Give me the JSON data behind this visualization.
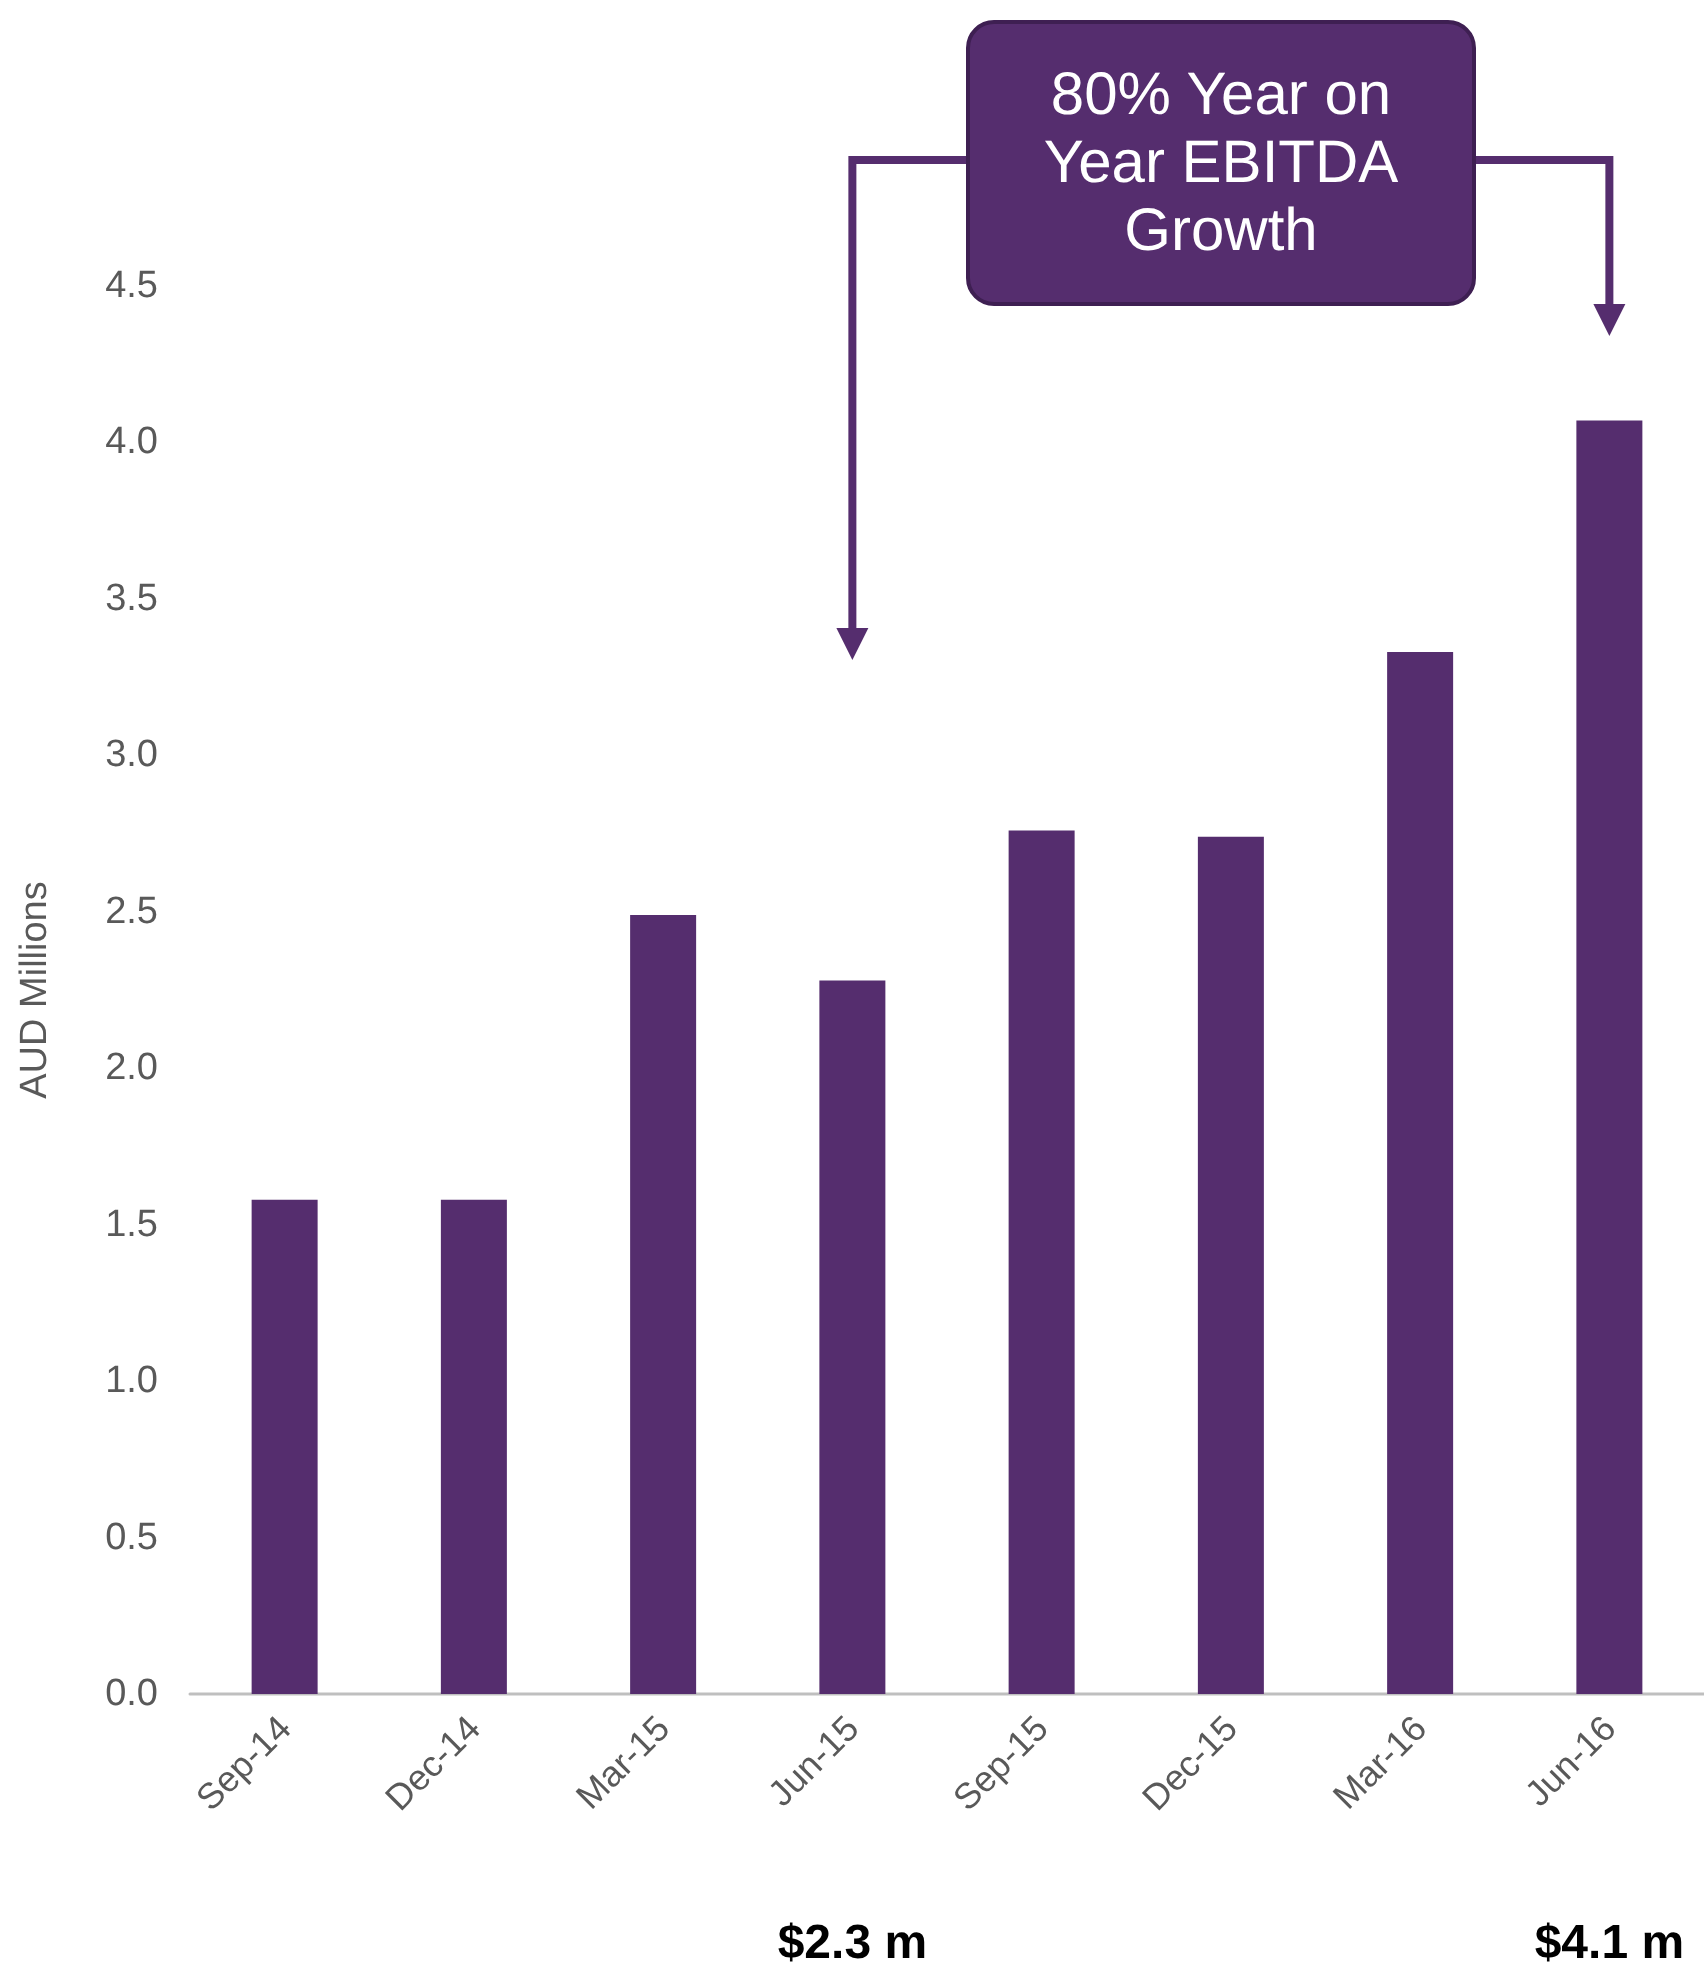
{
  "chart_data": {
    "type": "bar",
    "ylabel": "AUD Millions",
    "categories": [
      "Sep-14",
      "Dec-14",
      "Mar-15",
      "Jun-15",
      "Sep-15",
      "Dec-15",
      "Mar-16",
      "Jun-16"
    ],
    "values": [
      1.58,
      1.58,
      2.49,
      2.28,
      2.76,
      2.74,
      3.33,
      4.07
    ],
    "color": "#552d6e",
    "ylim": [
      0,
      4.5
    ],
    "yticks": [
      {
        "value": 0,
        "label": "0.0"
      },
      {
        "value": 0.5,
        "label": "0.5"
      },
      {
        "value": 1,
        "label": "1.0"
      },
      {
        "value": 1.5,
        "label": "1.5"
      },
      {
        "value": 2,
        "label": "2.0"
      },
      {
        "value": 2.5,
        "label": "2.5"
      },
      {
        "value": 3,
        "label": "3.0"
      },
      {
        "value": 3.5,
        "label": "3.5"
      },
      {
        "value": 4,
        "label": "4.0"
      },
      {
        "value": 4.5,
        "label": "4.5"
      }
    ],
    "grid": false,
    "annotations": [
      "80% Year on Year EBITDA Growth",
      "$2.3 m",
      "$4.1 m"
    ]
  }
}
